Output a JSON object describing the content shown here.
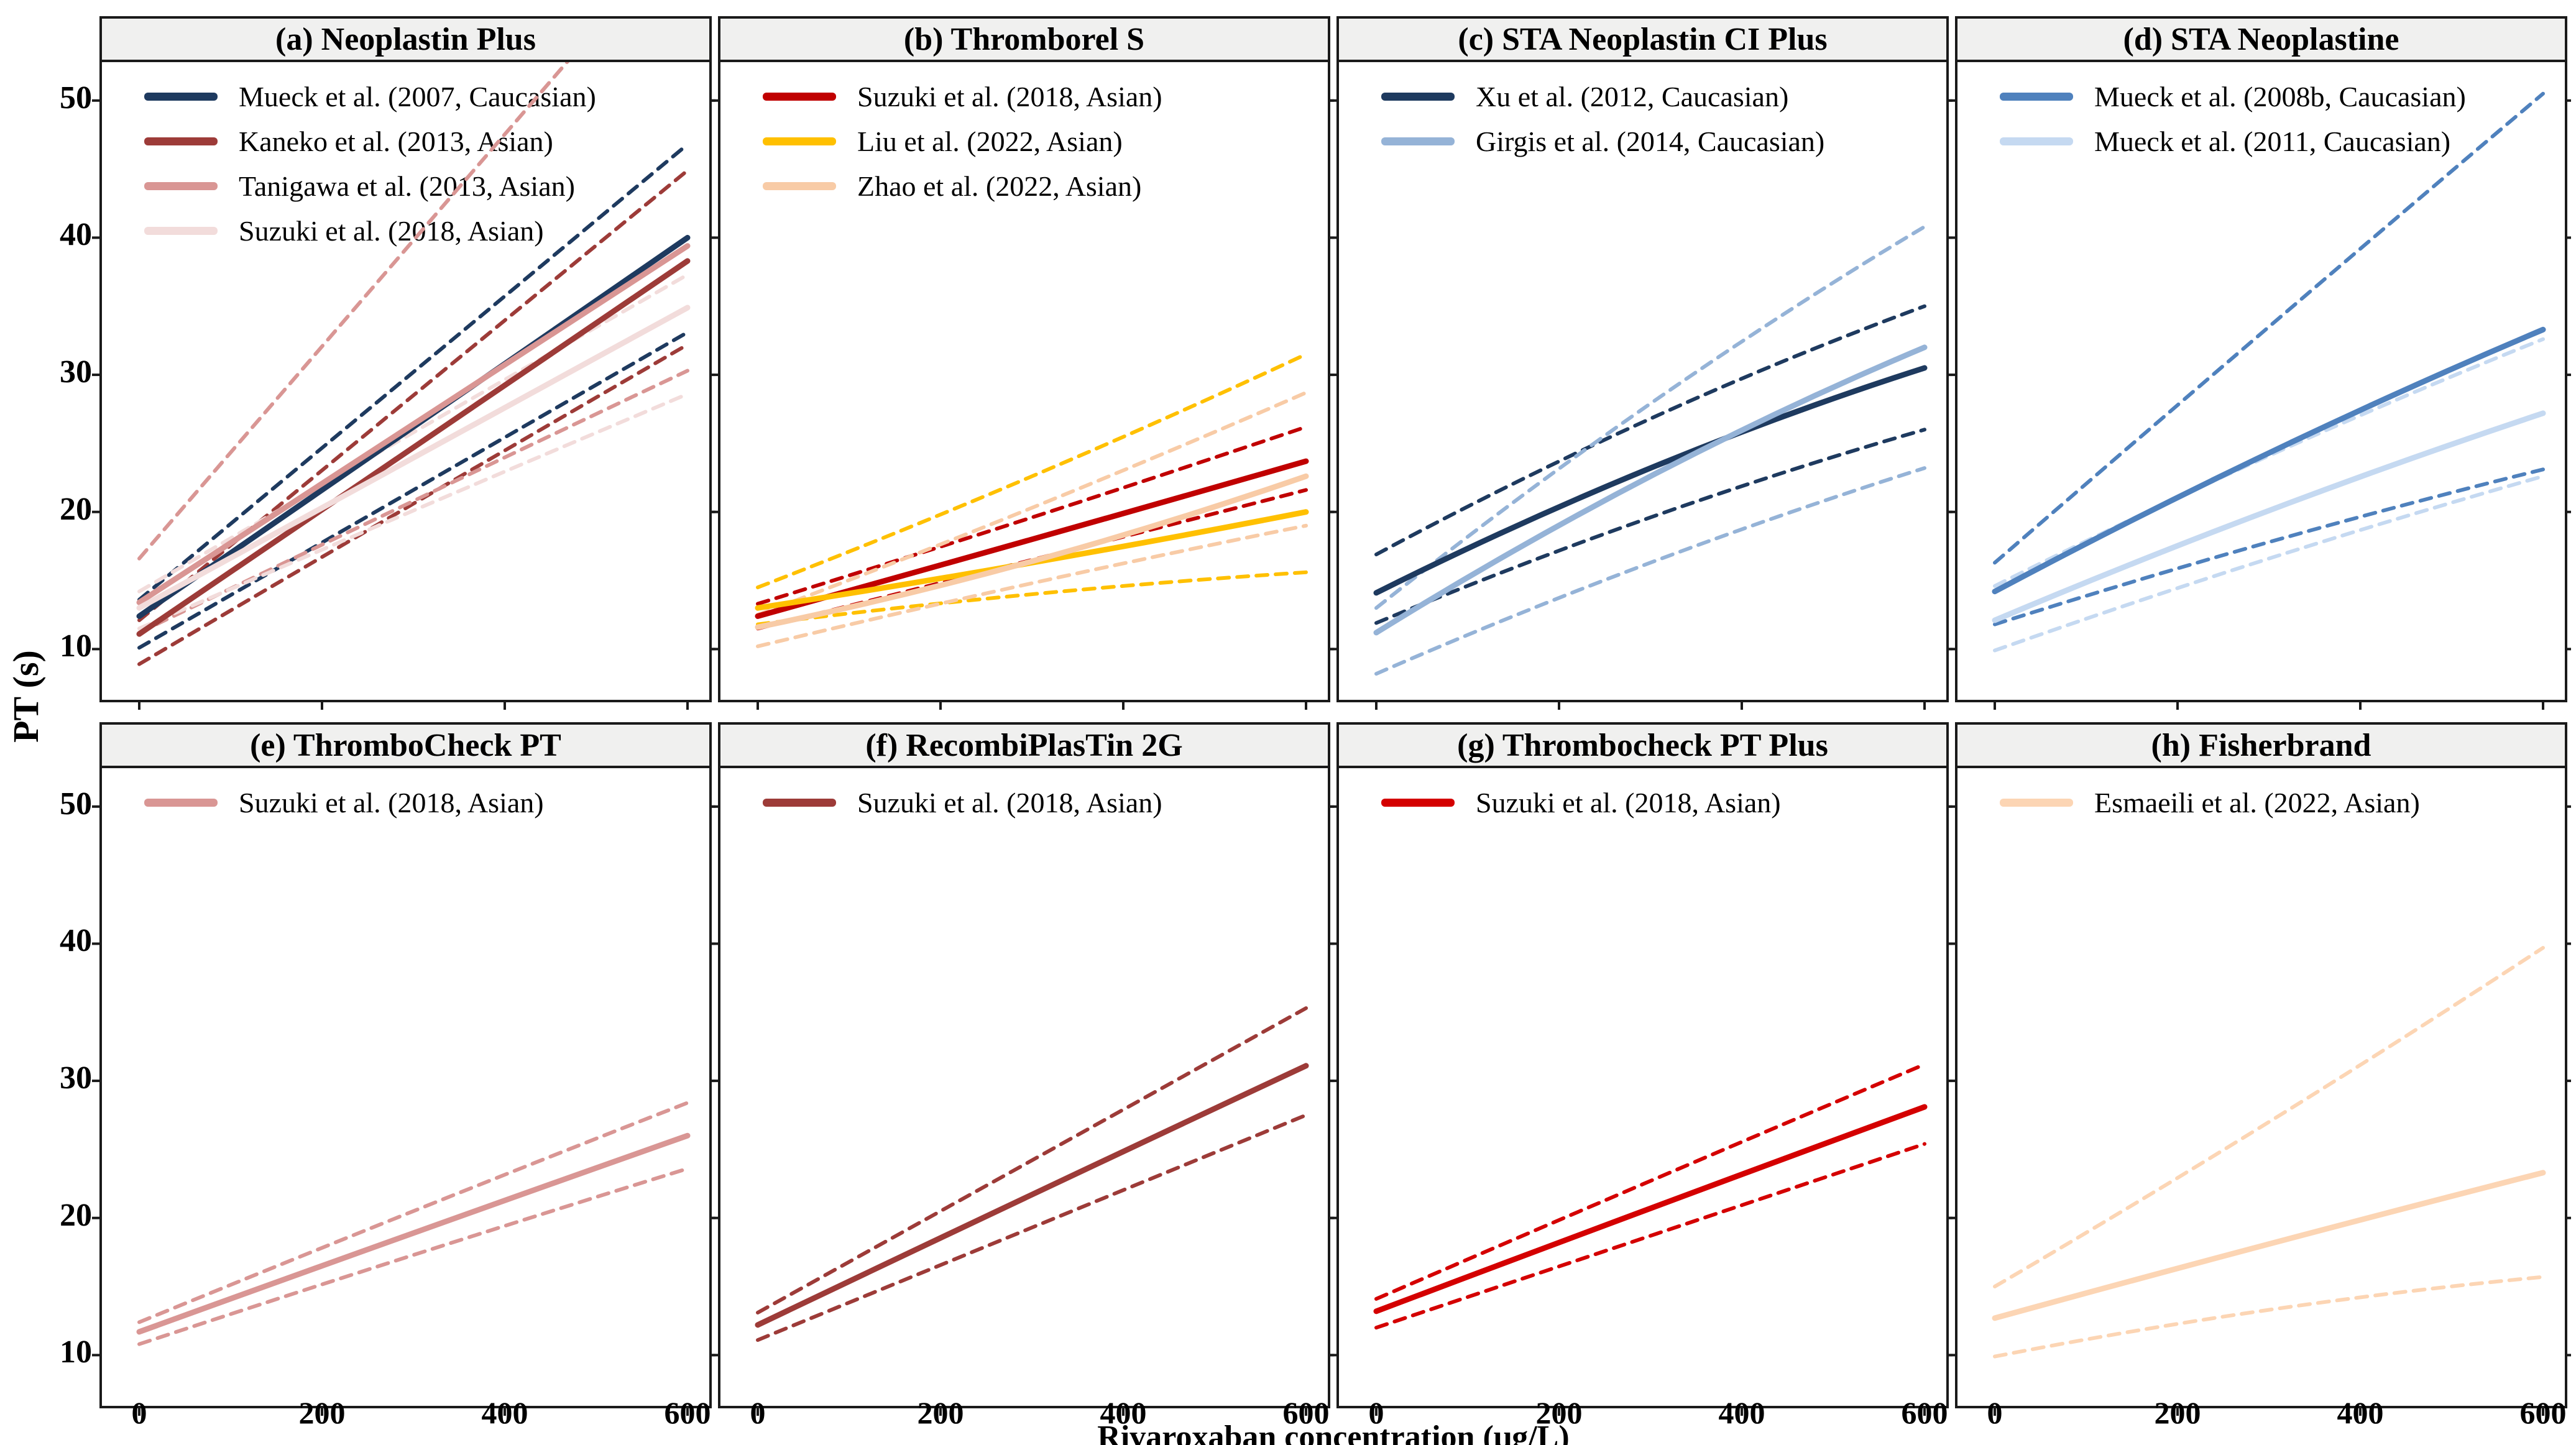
{
  "figure": {
    "ylabel": "PT (s)",
    "xlabel": "Rivaroxaban concentration (μg/L)"
  },
  "axes": {
    "x_tick_labels": [
      "0",
      "200",
      "400",
      "600"
    ],
    "x_tick_values": [
      0,
      200,
      400,
      600
    ],
    "y_tick_labels": [
      "50",
      "40",
      "30",
      "20",
      "10"
    ],
    "y_tick_values": [
      50,
      40,
      30,
      20,
      10
    ],
    "x_range": [
      0,
      600
    ],
    "y_range": [
      6.3,
      52.8
    ],
    "grid": false,
    "legend_position": "top-left",
    "ci_line_style": "dashed",
    "fit_line_style": "solid"
  },
  "chart_data": [
    {
      "type": "line",
      "title": "(a) Neoplastin Plus",
      "x": [
        0,
        300,
        600
      ],
      "series": [
        {
          "name": "Mueck et al. (2007, Caucasian)",
          "color": "#1e3a5f",
          "solid": [
            12.4,
            26.2,
            40.0
          ],
          "ci_upper": [
            13.6,
            30.2,
            46.8
          ],
          "ci_lower": [
            10.1,
            21.6,
            33.1
          ]
        },
        {
          "name": "Kaneko et al. (2013, Asian)",
          "color": "#9d3b38",
          "solid": [
            11.1,
            24.7,
            38.3
          ],
          "ci_upper": [
            12.1,
            28.5,
            44.9
          ],
          "ci_lower": [
            8.9,
            20.6,
            32.2
          ]
        },
        {
          "name": "Tanigawa et al. (2013, Asian)",
          "color": "#d99694",
          "solid": [
            13.4,
            26.4,
            39.4
          ],
          "ci_upper": [
            16.6,
            39.8,
            63.0
          ],
          "ci_lower": [
            11.2,
            20.8,
            30.3
          ]
        },
        {
          "name": "Suzuki et al. (2018, Asian)",
          "color": "#f2dcdb",
          "solid": [
            13.0,
            24.0,
            34.9
          ],
          "ci_upper": [
            14.2,
            25.8,
            37.3
          ],
          "ci_lower": [
            11.5,
            20.1,
            28.6
          ]
        }
      ]
    },
    {
      "type": "line",
      "title": "(b) Thromborel S",
      "x": [
        0,
        300,
        600
      ],
      "series": [
        {
          "name": "Suzuki et al. (2018, Asian)",
          "color": "#c00000",
          "solid": [
            12.4,
            18.0,
            23.7
          ],
          "ci_upper": [
            13.3,
            19.6,
            26.2
          ],
          "ci_lower": [
            11.5,
            16.5,
            21.6
          ]
        },
        {
          "name": "Liu et al. (2022, Asian)",
          "color": "#ffc000",
          "solid": [
            13.0,
            16.3,
            20.0
          ],
          "ci_upper": [
            14.5,
            22.6,
            31.5
          ],
          "ci_lower": [
            11.8,
            14.0,
            15.6
          ]
        },
        {
          "name": "Zhao et al. (2022, Asian)",
          "color": "#f8cba6",
          "solid": [
            11.6,
            16.4,
            22.6
          ],
          "ci_upper": [
            12.5,
            20.3,
            28.7
          ],
          "ci_lower": [
            10.2,
            14.8,
            19.0
          ]
        }
      ]
    },
    {
      "type": "line",
      "title": "(c) STA Neoplastin CI Plus",
      "x": [
        0,
        300,
        600
      ],
      "series": [
        {
          "name": "Xu et al. (2012, Caucasian)",
          "color": "#1e3a5f",
          "solid": [
            14.1,
            23.2,
            30.5
          ],
          "ci_upper": [
            16.9,
            26.8,
            35.0
          ],
          "ci_lower": [
            11.9,
            19.6,
            26.0
          ]
        },
        {
          "name": "Girgis et al. (2014, Caucasian)",
          "color": "#95b3d7",
          "solid": [
            11.2,
            22.6,
            32.0
          ],
          "ci_upper": [
            13.0,
            27.9,
            40.8
          ],
          "ci_lower": [
            8.2,
            16.3,
            23.2
          ]
        }
      ]
    },
    {
      "type": "line",
      "title": "(d) STA Neoplastine",
      "x": [
        0,
        300,
        600
      ],
      "series": [
        {
          "name": "Mueck et al. (2008b, Caucasian)",
          "color": "#4f81bd",
          "solid": [
            14.2,
            24.3,
            33.3
          ],
          "ci_upper": [
            16.3,
            33.5,
            50.5
          ],
          "ci_lower": [
            11.8,
            17.8,
            23.1
          ]
        },
        {
          "name": "Mueck et al. (2011, Caucasian)",
          "color": "#c5d9f1",
          "solid": [
            12.1,
            20.1,
            27.2
          ],
          "ci_upper": [
            14.6,
            24.1,
            32.6
          ],
          "ci_lower": [
            9.9,
            16.6,
            22.6
          ]
        }
      ]
    },
    {
      "type": "line",
      "title": "(e) ThromboCheck PT",
      "x": [
        0,
        300,
        600
      ],
      "series": [
        {
          "name": "Suzuki et al. (2018, Asian)",
          "color": "#d99694",
          "solid": [
            11.7,
            18.9,
            26.0
          ],
          "ci_upper": [
            12.4,
            20.5,
            28.4
          ],
          "ci_lower": [
            10.8,
            17.3,
            23.6
          ]
        }
      ]
    },
    {
      "type": "line",
      "title": "(f) RecombiPlasTin 2G",
      "x": [
        0,
        300,
        600
      ],
      "series": [
        {
          "name": "Suzuki et al. (2018, Asian)",
          "color": "#9d3b38",
          "solid": [
            12.2,
            21.7,
            31.1
          ],
          "ci_upper": [
            13.1,
            24.2,
            35.3
          ],
          "ci_lower": [
            11.1,
            19.3,
            27.5
          ]
        }
      ]
    },
    {
      "type": "line",
      "title": "(g) Thrombocheck PT Plus",
      "x": [
        0,
        300,
        600
      ],
      "series": [
        {
          "name": "Suzuki et al. (2018, Asian)",
          "color": "#d40000",
          "solid": [
            13.2,
            20.7,
            28.1
          ],
          "ci_upper": [
            14.1,
            22.7,
            31.2
          ],
          "ci_lower": [
            12.0,
            18.7,
            25.4
          ]
        }
      ]
    },
    {
      "type": "line",
      "title": "(h) Fisherbrand",
      "x": [
        0,
        300,
        600
      ],
      "series": [
        {
          "name": "Esmaeili et al. (2022, Asian)",
          "color": "#fcd5b4",
          "solid": [
            12.7,
            18.1,
            23.3
          ],
          "ci_upper": [
            15.0,
            27.0,
            39.7
          ],
          "ci_lower": [
            9.9,
            13.3,
            15.7
          ]
        }
      ]
    }
  ]
}
